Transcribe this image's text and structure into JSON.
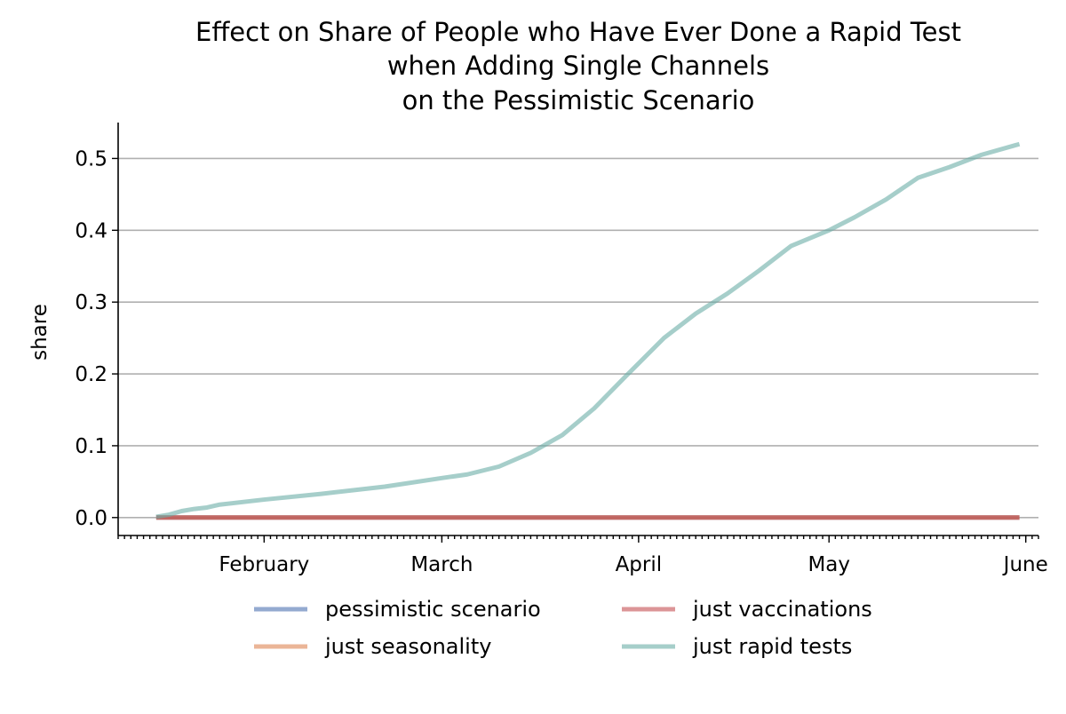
{
  "chart_data": {
    "type": "line",
    "title_lines": [
      "Effect on Share of People who Have Ever Done a Rapid Test",
      "when Adding Single Channels",
      "on the Pessimistic Scenario"
    ],
    "xlabel": "",
    "ylabel": "share",
    "ylim": [
      -0.025,
      0.55
    ],
    "xlim": [
      "2021-01-09",
      "2021-06-03"
    ],
    "yticks": [
      0.0,
      0.1,
      0.2,
      0.3,
      0.4,
      0.5
    ],
    "ytick_labels": [
      "0.0",
      "0.1",
      "0.2",
      "0.3",
      "0.4",
      "0.5"
    ],
    "xticks": [
      {
        "date": "2021-02-01",
        "label": "February"
      },
      {
        "date": "2021-03-01",
        "label": "March"
      },
      {
        "date": "2021-04-01",
        "label": "April"
      },
      {
        "date": "2021-05-01",
        "label": "May"
      },
      {
        "date": "2021-06-01",
        "label": "June"
      }
    ],
    "grid": "y",
    "legend_placement": "bottom-center",
    "series": [
      {
        "name": "pessimistic scenario",
        "color": "#4c72b0",
        "x": [
          "2021-01-15",
          "2021-05-31"
        ],
        "y": [
          0.0,
          0.0
        ]
      },
      {
        "name": "just seasonality",
        "color": "#dd8452",
        "x": [
          "2021-01-15",
          "2021-05-31"
        ],
        "y": [
          0.0,
          0.0
        ]
      },
      {
        "name": "just vaccinations",
        "color": "#c44e52",
        "x": [
          "2021-01-15",
          "2021-05-31"
        ],
        "y": [
          0.0,
          0.0
        ]
      },
      {
        "name": "just rapid tests",
        "color": "#6aaea6",
        "x": [
          "2021-01-15",
          "2021-01-17",
          "2021-01-19",
          "2021-01-21",
          "2021-01-23",
          "2021-01-25",
          "2021-02-01",
          "2021-02-10",
          "2021-02-20",
          "2021-03-01",
          "2021-03-05",
          "2021-03-10",
          "2021-03-15",
          "2021-03-20",
          "2021-03-25",
          "2021-03-30",
          "2021-04-05",
          "2021-04-10",
          "2021-04-15",
          "2021-04-20",
          "2021-04-25",
          "2021-05-01",
          "2021-05-05",
          "2021-05-10",
          "2021-05-15",
          "2021-05-20",
          "2021-05-25",
          "2021-05-31"
        ],
        "y": [
          0.001,
          0.004,
          0.009,
          0.012,
          0.014,
          0.018,
          0.025,
          0.033,
          0.043,
          0.055,
          0.06,
          0.071,
          0.09,
          0.115,
          0.152,
          0.197,
          0.25,
          0.284,
          0.312,
          0.344,
          0.378,
          0.4,
          0.418,
          0.443,
          0.473,
          0.488,
          0.505,
          0.52
        ]
      }
    ]
  }
}
